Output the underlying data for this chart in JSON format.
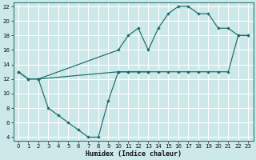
{
  "xlabel": "Humidex (Indice chaleur)",
  "background_color": "#cce8e8",
  "grid_color": "#ffffff",
  "line_color": "#1a6b6b",
  "xlim": [
    -0.5,
    23.5
  ],
  "ylim": [
    3.5,
    22.5
  ],
  "xticks": [
    0,
    1,
    2,
    3,
    4,
    5,
    6,
    7,
    8,
    9,
    10,
    11,
    12,
    13,
    14,
    15,
    16,
    17,
    18,
    19,
    20,
    21,
    22,
    23
  ],
  "yticks": [
    4,
    6,
    8,
    10,
    12,
    14,
    16,
    18,
    20,
    22
  ],
  "line1_x": [
    0,
    1,
    2,
    10,
    11,
    12,
    13,
    14,
    15,
    16,
    17,
    18,
    19,
    20,
    21,
    22,
    23
  ],
  "line1_y": [
    13,
    12,
    12,
    16,
    18,
    19,
    16,
    19,
    21,
    22,
    22,
    21,
    21,
    19,
    19,
    18,
    18
  ],
  "line2_x": [
    0,
    1,
    2,
    10,
    11,
    12,
    13,
    14,
    15,
    16,
    17,
    18,
    19,
    20,
    21,
    22,
    23
  ],
  "line2_y": [
    13,
    12,
    12,
    13,
    13,
    13,
    13,
    13,
    13,
    13,
    13,
    13,
    13,
    13,
    13,
    18,
    18
  ],
  "line3_x": [
    2,
    3,
    4,
    5,
    6,
    7,
    8,
    9,
    10,
    11,
    12,
    13
  ],
  "line3_y": [
    12,
    8,
    7,
    6,
    5,
    4,
    4,
    9,
    13,
    13,
    13,
    13
  ]
}
